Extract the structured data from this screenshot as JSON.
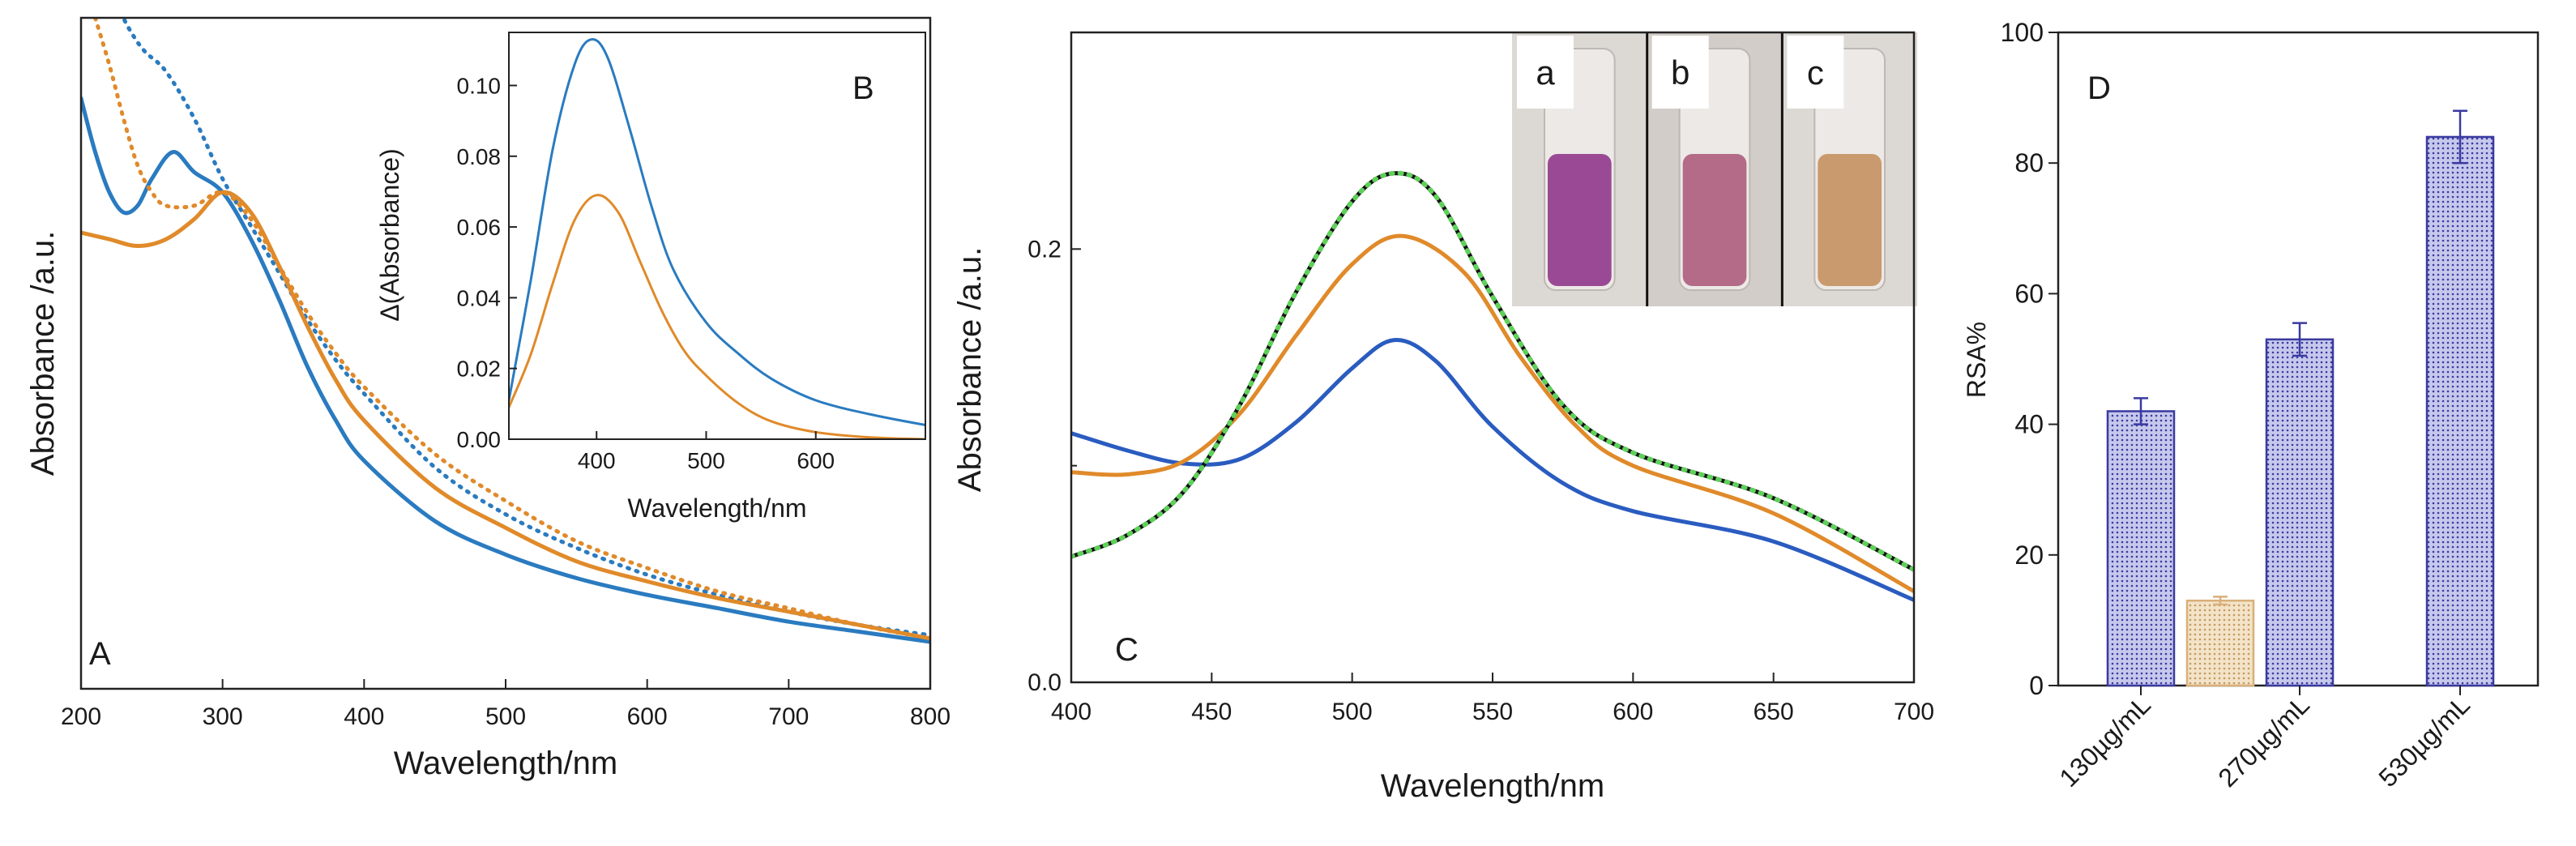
{
  "chart_data": [
    {
      "panel": "A",
      "type": "line",
      "xlabel": "Wavelength/nm",
      "ylabel": "Absorbance /a.u.",
      "xlim": [
        200,
        800
      ],
      "ylim": [
        0,
        1
      ],
      "x_ticks": [
        200,
        300,
        400,
        500,
        600,
        700,
        800
      ],
      "colors": {
        "blue": "#2a7bc0",
        "orange": "#e08a2a"
      },
      "series": [
        {
          "name": "blue solid",
          "color": "blue",
          "style": "solid",
          "x": [
            200,
            210,
            220,
            230,
            240,
            250,
            265,
            280,
            300,
            320,
            340,
            360,
            380,
            400,
            450,
            500,
            550,
            600,
            650,
            700,
            750,
            800
          ],
          "y": [
            0.88,
            0.8,
            0.74,
            0.71,
            0.72,
            0.76,
            0.8,
            0.77,
            0.74,
            0.67,
            0.58,
            0.48,
            0.4,
            0.34,
            0.25,
            0.2,
            0.165,
            0.14,
            0.12,
            0.1,
            0.085,
            0.07
          ]
        },
        {
          "name": "blue dotted",
          "color": "blue",
          "style": "dotted",
          "x": [
            225,
            235,
            245,
            260,
            280,
            300,
            320,
            340,
            360,
            380,
            400,
            450,
            500,
            550,
            600,
            650,
            700,
            750,
            800
          ],
          "y": [
            1.02,
            0.98,
            0.95,
            0.92,
            0.85,
            0.76,
            0.69,
            0.62,
            0.55,
            0.49,
            0.44,
            0.33,
            0.26,
            0.21,
            0.17,
            0.14,
            0.115,
            0.095,
            0.08
          ]
        },
        {
          "name": "orange solid",
          "color": "orange",
          "style": "solid",
          "x": [
            200,
            220,
            240,
            260,
            280,
            300,
            320,
            340,
            360,
            380,
            400,
            450,
            500,
            550,
            600,
            650,
            700,
            750,
            800
          ],
          "y": [
            0.68,
            0.67,
            0.66,
            0.67,
            0.7,
            0.74,
            0.71,
            0.63,
            0.54,
            0.46,
            0.4,
            0.3,
            0.24,
            0.19,
            0.16,
            0.135,
            0.115,
            0.095,
            0.075
          ]
        },
        {
          "name": "orange dotted",
          "color": "orange",
          "style": "dotted",
          "x": [
            210,
            220,
            230,
            240,
            250,
            260,
            280,
            300,
            320,
            340,
            360,
            380,
            400,
            450,
            500,
            550,
            600,
            650,
            700,
            750,
            800
          ],
          "y": [
            1.0,
            0.93,
            0.85,
            0.78,
            0.74,
            0.72,
            0.72,
            0.74,
            0.7,
            0.63,
            0.56,
            0.5,
            0.45,
            0.35,
            0.28,
            0.22,
            0.18,
            0.145,
            0.12,
            0.095,
            0.075
          ]
        }
      ]
    },
    {
      "panel": "B",
      "type": "line",
      "inset": true,
      "xlabel": "Wavelength/nm",
      "ylabel": "Δ(Absorbance)",
      "xlim": [
        320,
        700
      ],
      "ylim": [
        0,
        0.115
      ],
      "x_ticks": [
        400,
        500,
        600
      ],
      "y_ticks": [
        0.0,
        0.02,
        0.04,
        0.06,
        0.08,
        0.1
      ],
      "y_tick_labels": [
        "0.00",
        "0.02",
        "0.04",
        "0.06",
        "0.08",
        "0.10"
      ],
      "series": [
        {
          "name": "blue",
          "color": "blue",
          "x": [
            320,
            340,
            360,
            380,
            395,
            410,
            430,
            450,
            470,
            500,
            530,
            560,
            600,
            650,
            700
          ],
          "y": [
            0.011,
            0.045,
            0.082,
            0.106,
            0.113,
            0.108,
            0.088,
            0.066,
            0.048,
            0.033,
            0.024,
            0.017,
            0.011,
            0.007,
            0.004
          ]
        },
        {
          "name": "orange",
          "color": "orange",
          "x": [
            320,
            340,
            360,
            380,
            400,
            420,
            440,
            460,
            480,
            500,
            530,
            560,
            600,
            650,
            700
          ],
          "y": [
            0.009,
            0.024,
            0.044,
            0.062,
            0.069,
            0.064,
            0.05,
            0.036,
            0.025,
            0.018,
            0.01,
            0.005,
            0.002,
            0.0005,
            0.0
          ]
        }
      ]
    },
    {
      "panel": "C",
      "type": "line",
      "xlabel": "Wavelength/nm",
      "ylabel": "Absorbance /a.u.",
      "xlim": [
        400,
        700
      ],
      "ylim": [
        0.0,
        0.3
      ],
      "x_ticks": [
        400,
        450,
        500,
        550,
        600,
        650,
        700
      ],
      "y_ticks": [
        0.0,
        0.2
      ],
      "y_tick_labels": [
        "0.0",
        "0.2"
      ],
      "colors": {
        "blue": "#2a5cc0",
        "orange": "#e08a2a",
        "black": "#111111",
        "green": "#5fd05a"
      },
      "series": [
        {
          "name": "blue",
          "color": "blue",
          "x": [
            400,
            420,
            440,
            460,
            480,
            500,
            515,
            530,
            550,
            575,
            600,
            650,
            700
          ],
          "y": [
            0.115,
            0.107,
            0.101,
            0.103,
            0.12,
            0.145,
            0.158,
            0.148,
            0.118,
            0.092,
            0.079,
            0.065,
            0.038
          ]
        },
        {
          "name": "orange",
          "color": "orange",
          "x": [
            400,
            420,
            440,
            460,
            480,
            500,
            518,
            540,
            560,
            580,
            600,
            650,
            700
          ],
          "y": [
            0.097,
            0.096,
            0.102,
            0.124,
            0.16,
            0.193,
            0.206,
            0.189,
            0.15,
            0.118,
            0.1,
            0.078,
            0.042
          ]
        },
        {
          "name": "black",
          "color": "black",
          "x": [
            400,
            420,
            440,
            460,
            480,
            500,
            515,
            530,
            550,
            575,
            600,
            650,
            700
          ],
          "y": [
            0.058,
            0.068,
            0.088,
            0.128,
            0.18,
            0.222,
            0.235,
            0.224,
            0.178,
            0.128,
            0.106,
            0.085,
            0.052
          ]
        },
        {
          "name": "green dotted",
          "color": "green",
          "style": "dotted",
          "x": [
            400,
            420,
            440,
            460,
            480,
            500,
            515,
            530,
            550,
            575,
            600,
            650,
            700
          ],
          "y": [
            0.058,
            0.068,
            0.088,
            0.128,
            0.18,
            0.222,
            0.235,
            0.224,
            0.178,
            0.128,
            0.106,
            0.085,
            0.052
          ]
        }
      ],
      "inset_photo_labels": [
        "a",
        "b",
        "c"
      ],
      "inset_photo_colors": [
        "#9a4a94",
        "#b46b88",
        "#c99a6e"
      ]
    },
    {
      "panel": "D",
      "type": "bar",
      "ylabel": "RSA%",
      "ylim": [
        0,
        100
      ],
      "y_ticks": [
        0,
        20,
        40,
        60,
        80,
        100
      ],
      "categories": [
        "130µg/mL",
        "270µg/mL",
        "530µg/mL"
      ],
      "bars": [
        {
          "category": "130µg/mL",
          "series": "blue",
          "value": 42,
          "error": 2
        },
        {
          "category": "130µg/mL",
          "series": "tan",
          "value": 13,
          "error": 0.6
        },
        {
          "category": "270µg/mL",
          "series": "blue",
          "value": 53,
          "error": 2.5
        },
        {
          "category": "530µg/mL",
          "series": "blue",
          "value": 84,
          "error": 4
        }
      ],
      "colors": {
        "blue": "#3a3aa0",
        "tan": "#d9b07a"
      }
    }
  ]
}
